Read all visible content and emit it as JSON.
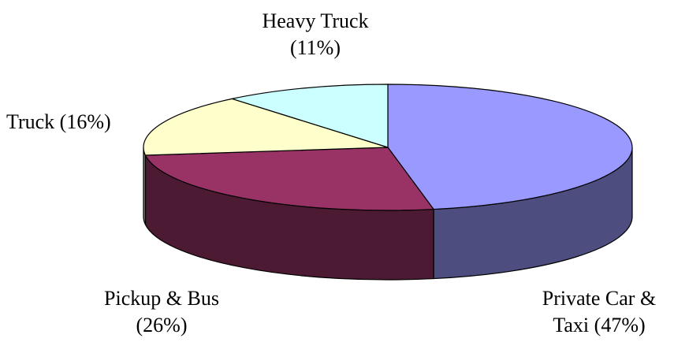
{
  "chart_data": {
    "type": "pie",
    "three_d": true,
    "categories": [
      "Private Car & Taxi",
      "Pickup & Bus",
      "Truck",
      "Heavy Truck"
    ],
    "values": [
      47,
      26,
      16,
      11
    ],
    "value_labels": [
      "(47%)",
      "(26%)",
      "(16%)",
      "(11%)"
    ],
    "colors": [
      "#9999ff",
      "#993366",
      "#ffffcc",
      "#ccffff"
    ]
  }
}
